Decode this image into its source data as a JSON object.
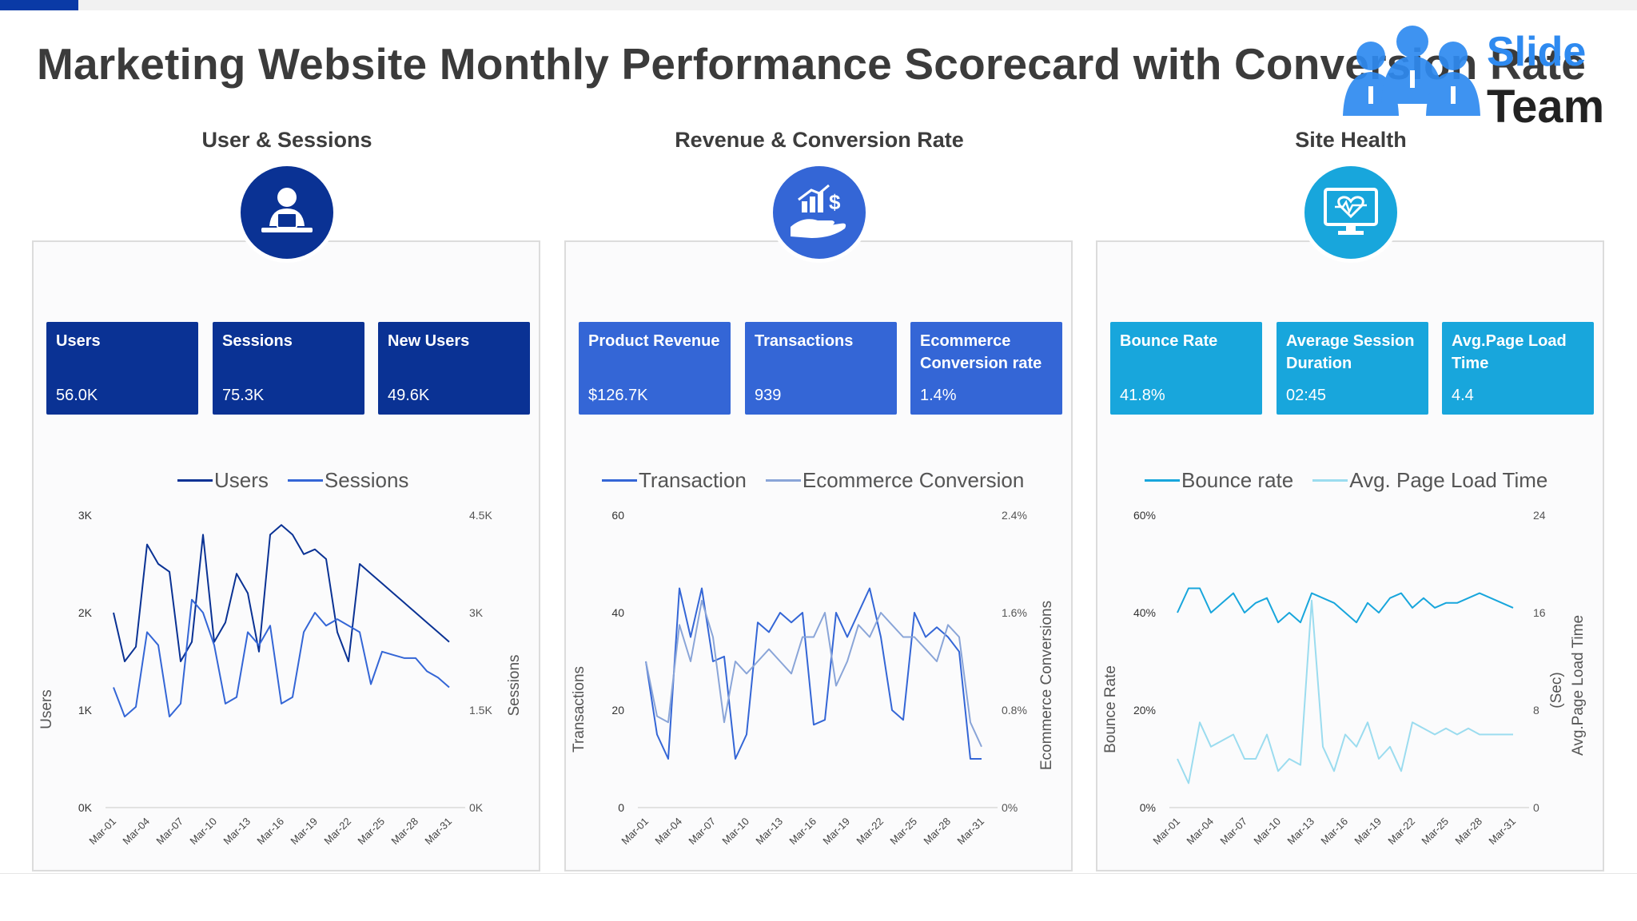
{
  "title": "Marketing Website Monthly Performance Scorecard with Conversion Rate",
  "logo": {
    "line1": "Slide",
    "line2": "Team"
  },
  "colors": {
    "dark": "#0a3294",
    "mid": "#3466d6",
    "cyan": "#18a6dc",
    "cyan_light": "#9bdcef",
    "blue_light": "#8aa5d8"
  },
  "sections": [
    {
      "title": "User & Sessions",
      "icon": "user-laptop-icon",
      "kpis": [
        {
          "label": "Users",
          "value": "56.0K"
        },
        {
          "label": "Sessions",
          "value": "75.3K"
        },
        {
          "label": "New Users",
          "value": "49.6K"
        }
      ],
      "legend": [
        "Users",
        "Sessions"
      ]
    },
    {
      "title": "Revenue & Conversion Rate",
      "icon": "revenue-hand-icon",
      "kpis": [
        {
          "label": "Product Revenue",
          "value": "$126.7K"
        },
        {
          "label": "Transactions",
          "value": "939"
        },
        {
          "label": "Ecommerce Conversion rate",
          "value": "1.4%"
        }
      ],
      "legend": [
        "Transaction",
        "Ecommerce Conversion"
      ]
    },
    {
      "title": "Site Health",
      "icon": "monitor-heartbeat-icon",
      "kpis": [
        {
          "label": "Bounce Rate",
          "value": "41.8%"
        },
        {
          "label": "Average Session Duration",
          "value": "02:45"
        },
        {
          "label": "Avg.Page Load Time",
          "value": "4.4"
        }
      ],
      "legend": [
        "Bounce rate",
        "Avg. Page Load Time"
      ]
    }
  ],
  "chart_data": [
    {
      "type": "line",
      "categories": [
        "Mar-01",
        "Mar-02",
        "Mar-03",
        "Mar-04",
        "Mar-05",
        "Mar-06",
        "Mar-07",
        "Mar-08",
        "Mar-09",
        "Mar-10",
        "Mar-11",
        "Mar-12",
        "Mar-13",
        "Mar-14",
        "Mar-15",
        "Mar-16",
        "Mar-17",
        "Mar-18",
        "Mar-19",
        "Mar-20",
        "Mar-21",
        "Mar-22",
        "Mar-23",
        "Mar-24",
        "Mar-25",
        "Mar-26",
        "Mar-27",
        "Mar-28",
        "Mar-29",
        "Mar-30",
        "Mar-31"
      ],
      "x_tick_labels": [
        "Mar-01",
        "Mar-04",
        "Mar-07",
        "Mar-10",
        "Mar-13",
        "Mar-16",
        "Mar-19",
        "Mar-22",
        "Mar-25",
        "Mar-28",
        "Mar-31"
      ],
      "x_tick_step": 3,
      "ylabel": "Users",
      "y2label": "Sessions",
      "y_ticks": [
        "0K",
        "1K",
        "2K",
        "3K"
      ],
      "y2_ticks": [
        "0K",
        "1.5K",
        "3K",
        "4.5K"
      ],
      "ylim": [
        0,
        3000
      ],
      "y2lim": [
        0,
        4500
      ],
      "series": [
        {
          "name": "Users",
          "axis": "left",
          "color": "#0a3294",
          "values": [
            2000,
            1500,
            1650,
            2700,
            2500,
            2420,
            1500,
            1700,
            2800,
            1700,
            1900,
            2400,
            2200,
            1600,
            2800,
            2900,
            2800,
            2600,
            2650,
            2550,
            1800,
            1500,
            2500,
            2400,
            2300,
            2200,
            2100,
            2000,
            1900,
            1800,
            1700
          ]
        },
        {
          "name": "Sessions",
          "axis": "right",
          "color": "#3466d6",
          "values": [
            1850,
            1400,
            1550,
            2700,
            2500,
            1400,
            1600,
            3200,
            3000,
            2500,
            1600,
            1700,
            2700,
            2500,
            2800,
            1600,
            1700,
            2700,
            3000,
            2800,
            2900,
            2800,
            2700,
            1900,
            2400,
            2350,
            2300,
            2300,
            2100,
            2000,
            1850
          ]
        }
      ]
    },
    {
      "type": "line",
      "categories": [
        "Mar-01",
        "Mar-02",
        "Mar-03",
        "Mar-04",
        "Mar-05",
        "Mar-06",
        "Mar-07",
        "Mar-08",
        "Mar-09",
        "Mar-10",
        "Mar-11",
        "Mar-12",
        "Mar-13",
        "Mar-14",
        "Mar-15",
        "Mar-16",
        "Mar-17",
        "Mar-18",
        "Mar-19",
        "Mar-20",
        "Mar-21",
        "Mar-22",
        "Mar-23",
        "Mar-24",
        "Mar-25",
        "Mar-26",
        "Mar-27",
        "Mar-28",
        "Mar-29",
        "Mar-30",
        "Mar-31"
      ],
      "x_tick_labels": [
        "Mar-01",
        "Mar-04",
        "Mar-07",
        "Mar-10",
        "Mar-13",
        "Mar-16",
        "Mar-19",
        "Mar-22",
        "Mar-25",
        "Mar-28",
        "Mar-31"
      ],
      "x_tick_step": 3,
      "ylabel": "Transactions",
      "y2label": "Ecommerce Conversions",
      "y_ticks": [
        "0",
        "20",
        "40",
        "60"
      ],
      "y2_ticks": [
        "0%",
        "0.8%",
        "1.6%",
        "2.4%"
      ],
      "ylim": [
        0,
        60
      ],
      "y2lim": [
        0,
        2.4
      ],
      "series": [
        {
          "name": "Transaction",
          "axis": "left",
          "color": "#3466d6",
          "values": [
            30,
            15,
            10,
            45,
            35,
            45,
            30,
            31,
            10,
            15,
            38,
            36,
            40,
            38,
            40,
            17,
            18,
            40,
            35,
            40,
            45,
            35,
            20,
            18,
            40,
            35,
            37,
            35,
            32,
            10,
            10
          ]
        },
        {
          "name": "Ecommerce Conversion",
          "axis": "right",
          "color": "#8aa5d8",
          "values": [
            1.2,
            0.75,
            0.7,
            1.5,
            1.2,
            1.7,
            1.4,
            0.7,
            1.2,
            1.1,
            1.2,
            1.3,
            1.2,
            1.1,
            1.4,
            1.4,
            1.6,
            1.0,
            1.2,
            1.5,
            1.4,
            1.6,
            1.5,
            1.4,
            1.4,
            1.3,
            1.2,
            1.5,
            1.4,
            0.7,
            0.5
          ]
        }
      ]
    },
    {
      "type": "line",
      "categories": [
        "Mar-01",
        "Mar-02",
        "Mar-03",
        "Mar-04",
        "Mar-05",
        "Mar-06",
        "Mar-07",
        "Mar-08",
        "Mar-09",
        "Mar-10",
        "Mar-11",
        "Mar-12",
        "Mar-13",
        "Mar-14",
        "Mar-15",
        "Mar-16",
        "Mar-17",
        "Mar-18",
        "Mar-19",
        "Mar-20",
        "Mar-21",
        "Mar-22",
        "Mar-23",
        "Mar-24",
        "Mar-25",
        "Mar-26",
        "Mar-27",
        "Mar-28",
        "Mar-29",
        "Mar-30",
        "Mar-31"
      ],
      "x_tick_labels": [
        "Mar-01",
        "Mar-04",
        "Mar-07",
        "Mar-10",
        "Mar-13",
        "Mar-16",
        "Mar-19",
        "Mar-22",
        "Mar-25",
        "Mar-28",
        "Mar-31"
      ],
      "x_tick_step": 3,
      "ylabel": "Bounce  Rate",
      "y2label": "Avg.Page Load Time",
      "y2label_extra": "(Sec)",
      "y_ticks": [
        "0%",
        "20%",
        "40%",
        "60%"
      ],
      "y2_ticks": [
        "0",
        "8",
        "16",
        "24"
      ],
      "ylim": [
        0,
        60
      ],
      "y2lim": [
        0,
        24
      ],
      "series": [
        {
          "name": "Bounce rate",
          "axis": "left",
          "color": "#18a6dc",
          "values": [
            40,
            45,
            45,
            40,
            42,
            44,
            40,
            42,
            43,
            38,
            40,
            38,
            44,
            43,
            42,
            40,
            38,
            42,
            40,
            43,
            44,
            41,
            43,
            41,
            42,
            42,
            43,
            44,
            43,
            42,
            41
          ]
        },
        {
          "name": "Avg. Page Load Time",
          "axis": "right",
          "color": "#9bdcef",
          "values": [
            4,
            2,
            7,
            5,
            5.5,
            6,
            4,
            4,
            6,
            3,
            4,
            3.5,
            17,
            5,
            3,
            6,
            5,
            7,
            4,
            5,
            3,
            7,
            6.5,
            6,
            6.5,
            6,
            6.5,
            6,
            6,
            6,
            6
          ]
        }
      ]
    }
  ]
}
